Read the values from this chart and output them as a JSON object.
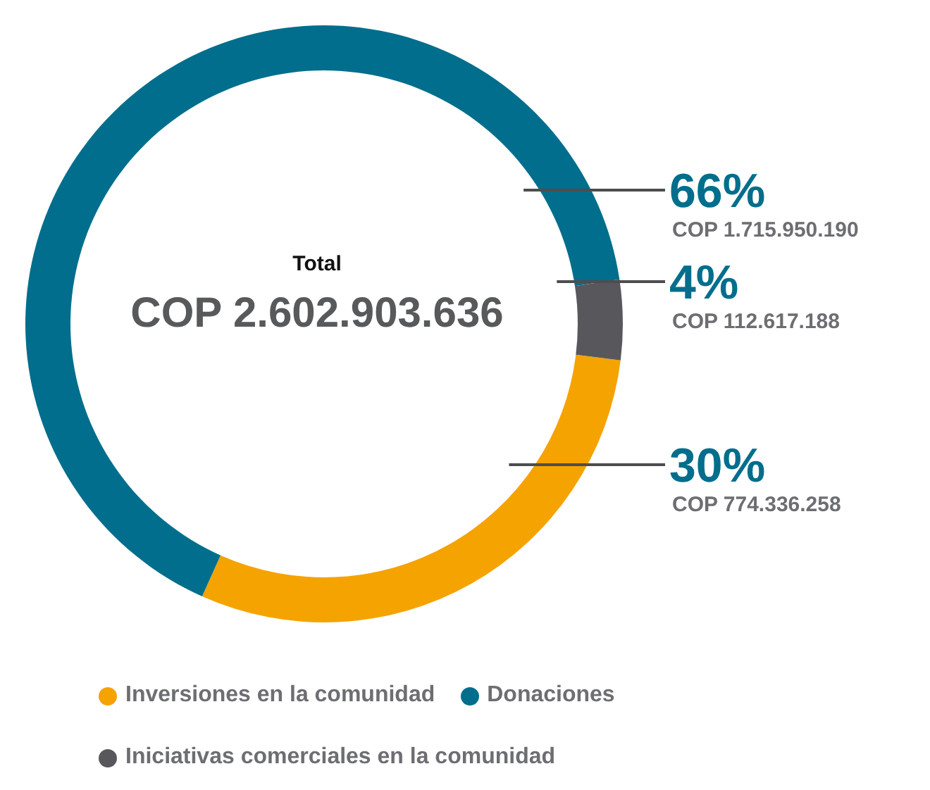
{
  "chart_data": {
    "type": "donut",
    "title": "Total",
    "subtitle": "COP 2.602.903.636",
    "categories": [
      "Inversiones en la comunidad",
      "Donaciones",
      "Iniciativas comerciales en la comunidad"
    ],
    "values": [
      774336258,
      1715950190,
      112617188
    ],
    "colors": [
      "#f5a300",
      "#006e8c",
      "#58575c"
    ],
    "value_labels": [
      "COP 774.336.258",
      "COP 1.715.950.190",
      "COP 112.617.188"
    ],
    "annotations": [
      "30%",
      "66%",
      "4%"
    ],
    "legend": "bottom"
  }
}
